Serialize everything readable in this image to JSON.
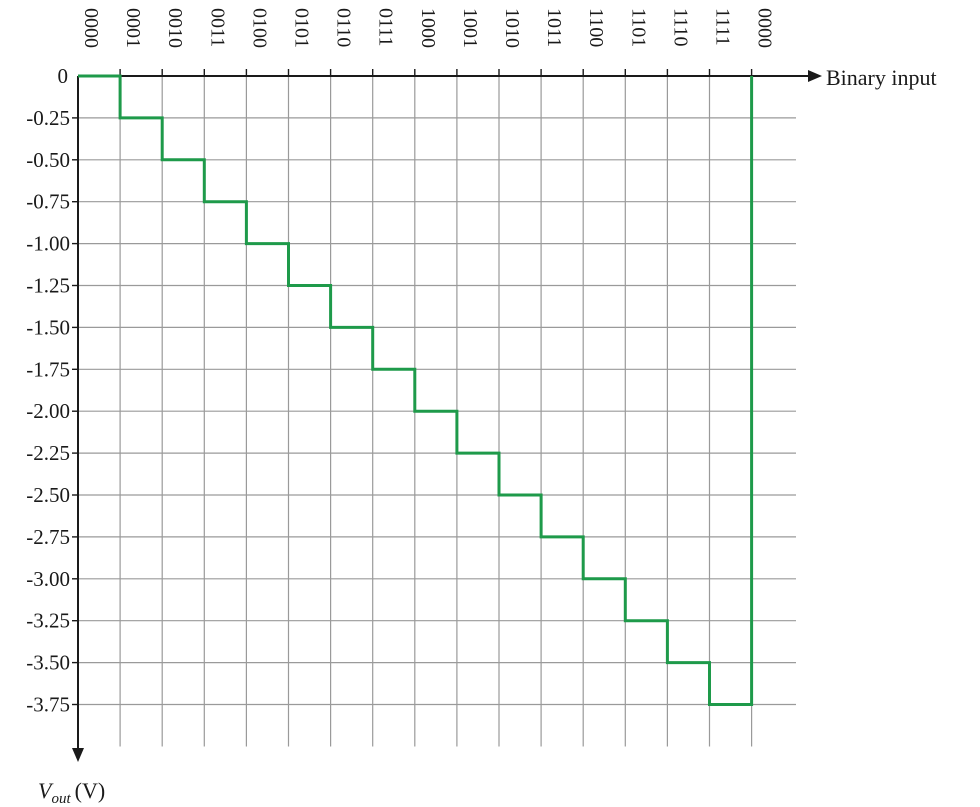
{
  "chart_data": {
    "type": "line",
    "step": true,
    "x_categories": [
      "0000",
      "0001",
      "0010",
      "0011",
      "0100",
      "0101",
      "0110",
      "0111",
      "1000",
      "1001",
      "1010",
      "1011",
      "1100",
      "1101",
      "1110",
      "1111",
      "0000"
    ],
    "values": [
      0,
      -0.25,
      -0.5,
      -0.75,
      -1.0,
      -1.25,
      -1.5,
      -1.75,
      -2.0,
      -2.25,
      -2.5,
      -2.75,
      -3.0,
      -3.25,
      -3.5,
      -3.75,
      0
    ],
    "y_tick_labels": [
      "0",
      "-0.25",
      "-0.50",
      "-0.75",
      "-1.00",
      "-1.25",
      "-1.50",
      "-1.75",
      "-2.00",
      "-2.25",
      "-2.50",
      "-2.75",
      "-3.00",
      "-3.25",
      "-3.50",
      "-3.75"
    ],
    "y_tick_values": [
      0,
      -0.25,
      -0.5,
      -0.75,
      -1.0,
      -1.25,
      -1.5,
      -1.75,
      -2.0,
      -2.25,
      -2.5,
      -2.75,
      -3.0,
      -3.25,
      -3.5,
      -3.75
    ],
    "ylim": [
      -3.75,
      0
    ],
    "xlabel": "Binary input",
    "ylabel_main": "V",
    "ylabel_sub": "out",
    "ylabel_unit": "(V)",
    "grid": true,
    "line_color": "#1e9a4a"
  }
}
